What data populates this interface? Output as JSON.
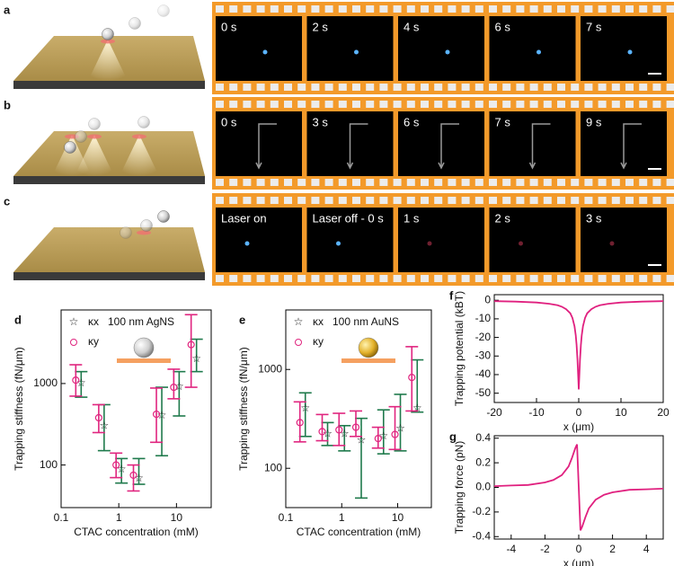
{
  "panels": [
    {
      "label": "a",
      "frames": [
        "0 s",
        "2 s",
        "4 s",
        "6 s",
        "7 s"
      ]
    },
    {
      "label": "b",
      "frames": [
        "0 s",
        "3 s",
        "6 s",
        "7 s",
        "9 s"
      ]
    },
    {
      "label": "c",
      "frames": [
        "Laser on",
        "Laser off - 0 s",
        "1 s",
        "2 s",
        "3 s"
      ]
    }
  ],
  "chart_data": [
    {
      "type": "errorbar",
      "panel_label": "d",
      "annotation": "100 nm AgNS",
      "xlog": true,
      "ylog": true,
      "x_label": "CTAC concentration (mM)",
      "y_label": "Trapping stiffness (fN/μm)",
      "xlim": [
        0.1,
        40
      ],
      "ylim": [
        30,
        8000
      ],
      "xticks": [
        0.1,
        1,
        10
      ],
      "yticks": [
        100,
        1000
      ],
      "x": [
        0.2,
        0.5,
        1,
        2,
        5,
        10,
        20
      ],
      "series": [
        {
          "name": "κx",
          "color": "#1f7a4c",
          "marker": "star",
          "values": [
            1000,
            300,
            88,
            68,
            400,
            900,
            2000
          ],
          "lower": [
            680,
            150,
            60,
            58,
            130,
            400,
            1400
          ],
          "upper": [
            1400,
            550,
            120,
            120,
            900,
            1400,
            3500
          ]
        },
        {
          "name": "κy",
          "color": "#e0257f",
          "marker": "circle",
          "values": [
            1100,
            380,
            100,
            75,
            420,
            900,
            3000
          ],
          "lower": [
            700,
            250,
            70,
            48,
            190,
            650,
            900
          ],
          "upper": [
            1700,
            550,
            140,
            100,
            880,
            1500,
            7000
          ]
        }
      ]
    },
    {
      "type": "errorbar",
      "panel_label": "e",
      "annotation": "100 nm AuNS",
      "xlog": true,
      "ylog": true,
      "x_label": "CTAC concentration (mM)",
      "y_label": "Trapping stiffness (fN/μm)",
      "xlim": [
        0.1,
        40
      ],
      "ylim": [
        40,
        4000
      ],
      "xticks": [
        0.1,
        1,
        10
      ],
      "yticks": [
        100,
        1000
      ],
      "x": [
        0.2,
        0.5,
        1,
        2,
        5,
        10,
        20
      ],
      "series": [
        {
          "name": "κx",
          "color": "#1f7a4c",
          "marker": "star",
          "values": [
            400,
            220,
            220,
            190,
            210,
            250,
            400
          ],
          "lower": [
            210,
            170,
            150,
            50,
            140,
            150,
            370
          ],
          "upper": [
            580,
            290,
            270,
            320,
            390,
            560,
            1250
          ]
        },
        {
          "name": "κy",
          "color": "#e0257f",
          "marker": "circle",
          "values": [
            290,
            235,
            245,
            260,
            200,
            220,
            830
          ],
          "lower": [
            185,
            190,
            170,
            210,
            160,
            155,
            380
          ],
          "upper": [
            470,
            350,
            360,
            380,
            260,
            420,
            1700
          ]
        }
      ]
    },
    {
      "type": "line",
      "panel_label": "f",
      "color": "#e0207f",
      "x_label": "x (μm)",
      "y_label": "Trapping potential (kBT)",
      "xlim": [
        -20,
        20
      ],
      "ylim": [
        -55,
        3
      ],
      "xticks": [
        -20,
        -10,
        0,
        10,
        20
      ],
      "yticks": [
        0,
        -10,
        -20,
        -30,
        -40,
        -50
      ],
      "x": [
        -20,
        -15,
        -10,
        -7,
        -5,
        -4,
        -3,
        -2,
        -1.5,
        -1,
        -0.7,
        -0.5,
        -0.3,
        -0.15,
        0,
        0.15,
        0.3,
        0.5,
        0.7,
        1,
        1.5,
        2,
        3,
        4,
        5,
        7,
        10,
        15,
        20
      ],
      "values": [
        -0.5,
        -0.7,
        -1.2,
        -1.9,
        -2.7,
        -3.5,
        -4.8,
        -7,
        -9.5,
        -14,
        -19,
        -24,
        -32,
        -40,
        -48,
        -40,
        -32,
        -24,
        -19,
        -14,
        -9.5,
        -7,
        -4.8,
        -3.5,
        -2.7,
        -1.9,
        -1.2,
        -0.7,
        -0.5
      ]
    },
    {
      "type": "line",
      "panel_label": "g",
      "color": "#e0207f",
      "x_label": "x (μm)",
      "y_label": "Trapping force (pN)",
      "xlim": [
        -5,
        5
      ],
      "ylim": [
        -0.42,
        0.42
      ],
      "xticks": [
        -4,
        -2,
        0,
        2,
        4
      ],
      "yticks": [
        0.4,
        0.2,
        {
          "value": 0,
          "label": "0.0"
        },
        -0.2,
        -0.4
      ],
      "x": [
        -5,
        -4,
        -3,
        -2,
        -1.5,
        -1,
        -0.6,
        -0.4,
        -0.2,
        -0.1,
        0,
        0.1,
        0.2,
        0.4,
        0.6,
        1,
        1.5,
        2,
        3,
        4,
        5
      ],
      "values": [
        0.01,
        0.015,
        0.02,
        0.04,
        0.06,
        0.1,
        0.17,
        0.24,
        0.32,
        0.35,
        0,
        -0.35,
        -0.32,
        -0.24,
        -0.17,
        -0.1,
        -0.06,
        -0.04,
        -0.02,
        -0.015,
        -0.01
      ]
    }
  ]
}
